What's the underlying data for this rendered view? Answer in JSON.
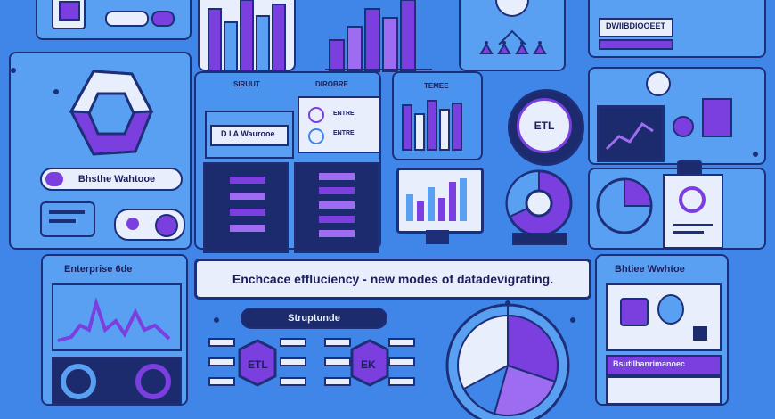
{
  "labels": {
    "top_right_tag": "DWIIBDIOOEET",
    "left_badge": "Bhsthe Wahtooe",
    "middle_panel_left_header": "SIRUUT",
    "middle_panel_right_header": "DIROBRE",
    "server_card": "D I A   Waurooe",
    "doc_item_1": "ENTRE",
    "doc_item_2": "ENTRE",
    "chart_panel_header": "TEMEE",
    "etl_circle": "ETL",
    "banner": "Enchcace effluciency - new modes of datadevigrating.",
    "bottom_left_header": "Enterprise 6de",
    "bottom_pill": "Struptunde",
    "hex_etl_1": "ETL",
    "hex_etl_2": "EK",
    "bottom_right_header": "Bhtiee Wwhtoe",
    "bottom_right_footer": "Bsutilbanrimanoec"
  },
  "colors": {
    "background": "#3f86e8",
    "panel": "#5aa0f2",
    "outline": "#1e2f7a",
    "purple": "#7b3fe0",
    "light": "#e8eefc"
  }
}
